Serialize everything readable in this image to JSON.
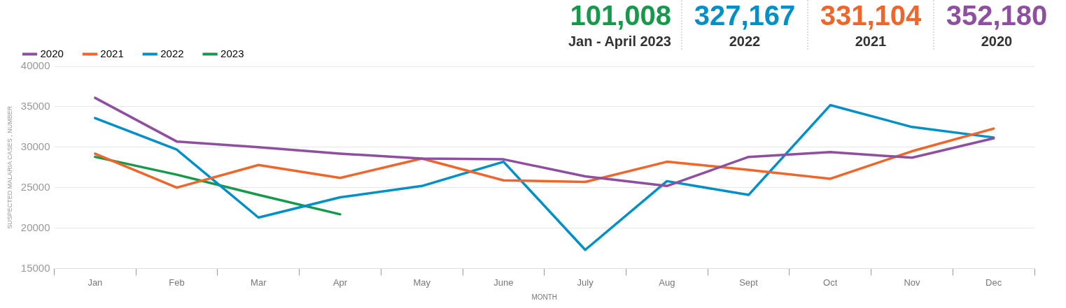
{
  "chart_data": {
    "type": "line",
    "xlabel": "MONTH",
    "ylabel": "SUSPECTED MALARIA CASES , NUMBER",
    "categories": [
      "Jan",
      "Feb",
      "Mar",
      "Apr",
      "May",
      "June",
      "July",
      "Aug",
      "Sept",
      "Oct",
      "Nov",
      "Dec"
    ],
    "series": [
      {
        "name": "2020",
        "color": "#8e4fa0",
        "values": [
          36100,
          30700,
          30000,
          29200,
          28600,
          28500,
          26400,
          25200,
          28800,
          29400,
          28700,
          31100
        ]
      },
      {
        "name": "2021",
        "color": "#f0652a",
        "values": [
          29200,
          25000,
          27800,
          26200,
          28600,
          25900,
          25700,
          28200,
          27200,
          26100,
          29500,
          32300
        ]
      },
      {
        "name": "2022",
        "color": "#0090c8",
        "values": [
          33600,
          29700,
          21300,
          23800,
          25200,
          28200,
          17300,
          25800,
          24100,
          35200,
          32500,
          31200
        ]
      },
      {
        "name": "2023",
        "color": "#16994a",
        "values": [
          28800,
          26600,
          24100,
          21700,
          null,
          null,
          null,
          null,
          null,
          null,
          null,
          null
        ]
      }
    ],
    "ylim": [
      15000,
      40000
    ],
    "yticks": [
      15000,
      20000,
      25000,
      30000,
      35000,
      40000
    ],
    "grid": "y",
    "legend": "top left",
    "marker": "none",
    "line_style": "solid",
    "annotations": [
      "101,008",
      "Jan - April 2023",
      "327,167",
      "2022",
      "331,104",
      "2021",
      "352,180",
      "2020"
    ]
  }
}
